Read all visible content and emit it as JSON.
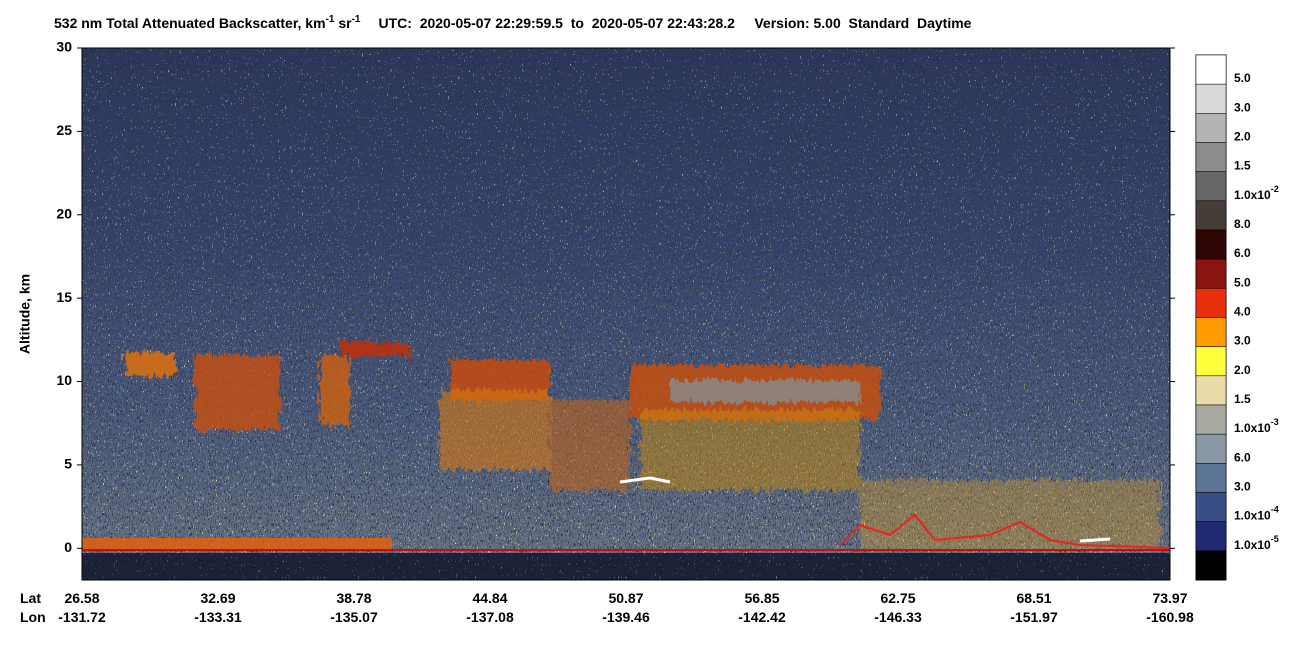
{
  "chart_data": {
    "type": "heatmap",
    "title": {
      "text": "532 nm Total Attenuated Backscatter, km",
      "sup1": "-1",
      "mid": " sr",
      "sup2": "-1",
      "utc": "UTC:  2020-05-07 22:29:59.5  to  2020-05-07 22:43:28.2     Version: 5.00  Standard  Daytime"
    },
    "ylabel": "Altitude, km",
    "ylim": [
      -1.9,
      30
    ],
    "yticks": [
      0,
      5,
      10,
      15,
      20,
      25,
      30
    ],
    "x_rows": [
      {
        "name": "Lat",
        "values": [
          26.58,
          32.69,
          38.78,
          44.84,
          50.87,
          56.85,
          62.75,
          68.51,
          73.97
        ]
      },
      {
        "name": "Lon",
        "values": [
          -131.72,
          -133.31,
          -135.07,
          -137.08,
          -139.46,
          -142.42,
          -146.33,
          -151.97,
          -160.98
        ]
      }
    ],
    "colorbar": {
      "colors": [
        "#ffffff",
        "#d9d9d9",
        "#b4b4b4",
        "#8c8c8c",
        "#666666",
        "#463c38",
        "#2e0505",
        "#8a1410",
        "#e8300e",
        "#ff9d00",
        "#ffff3c",
        "#eadba8",
        "#a8aaa2",
        "#8a98a6",
        "#5c7496",
        "#3a4e86",
        "#1f2a72",
        "#000000"
      ],
      "labels": [
        {
          "text": "5.0"
        },
        {
          "text": "3.0"
        },
        {
          "text": "2.0"
        },
        {
          "text": "1.5"
        },
        {
          "text": "1.0x10",
          "sup": "-2"
        },
        {
          "text": "8.0"
        },
        {
          "text": "6.0"
        },
        {
          "text": "5.0"
        },
        {
          "text": "4.0"
        },
        {
          "text": "3.0"
        },
        {
          "text": "2.0"
        },
        {
          "text": "1.5"
        },
        {
          "text": "1.0x10",
          "sup": "-3"
        },
        {
          "text": "6.0"
        },
        {
          "text": "3.0"
        },
        {
          "text": "1.0x10",
          "sup": "-4"
        },
        {
          "text": "1.0x10",
          "sup": "-5"
        }
      ]
    }
  }
}
